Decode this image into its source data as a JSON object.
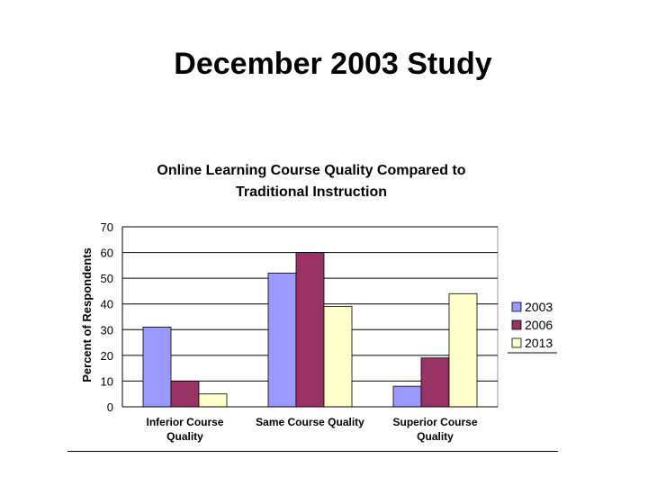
{
  "slide": {
    "title": "December 2003 Study"
  },
  "chart_data": {
    "type": "bar",
    "title": "Online Learning Course Quality Compared to Traditional Instruction",
    "title_lines": [
      "Online Learning Course Quality Compared to",
      "Traditional Instruction"
    ],
    "xlabel": "",
    "ylabel": "Percent of Respondents",
    "ylim": [
      0,
      70
    ],
    "yticks": [
      0,
      10,
      20,
      30,
      40,
      50,
      60,
      70
    ],
    "categories": [
      "Inferior Course Quality",
      "Same Course Quality",
      "Superior Course Quality"
    ],
    "category_lines": [
      [
        "Inferior Course",
        "Quality"
      ],
      [
        "Same Course Quality"
      ],
      [
        "Superior Course",
        "Quality"
      ]
    ],
    "series": [
      {
        "name": "2003",
        "values": [
          31,
          52,
          8
        ],
        "color": "#9999ff"
      },
      {
        "name": "2006",
        "values": [
          10,
          60,
          19
        ],
        "color": "#993366"
      },
      {
        "name": "2013",
        "values": [
          5,
          39,
          44
        ],
        "color": "#ffffcc"
      }
    ],
    "grid": true,
    "legend_position": "right"
  }
}
